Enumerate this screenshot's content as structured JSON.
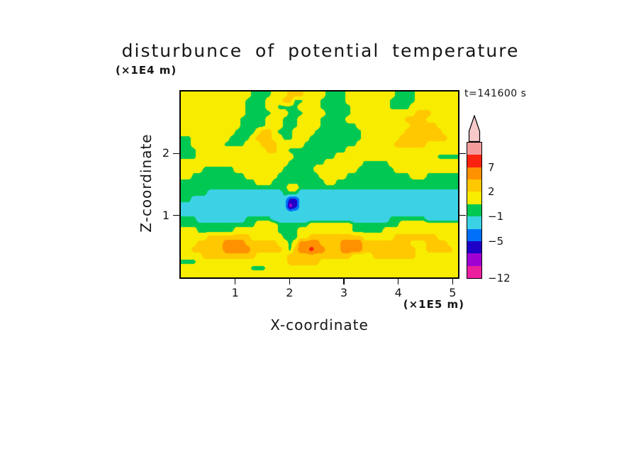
{
  "title": "disturbunce of potential temperature",
  "time_label": "t=141600 s",
  "axes": {
    "x": {
      "label": "X-coordinate",
      "unit": "(×1E5 m)",
      "ticks": [
        1,
        2,
        3,
        4,
        5
      ],
      "range": [
        0,
        5.1
      ]
    },
    "z": {
      "label": "Z-coordinate",
      "unit": "(×1E4 m)",
      "ticks": [
        1,
        2
      ],
      "range": [
        0,
        3
      ]
    }
  },
  "colorbar": {
    "arrow_color": "#F7C9C9",
    "blocks": [
      "#F59B9B",
      "#FA230F",
      "#FF9100",
      "#FFC800",
      "#F8EC00",
      "#00C853",
      "#3CD2E6",
      "#0070FA",
      "#1E00C8",
      "#A000D2",
      "#EC1F9E"
    ],
    "labels": [
      {
        "text": "7",
        "boundary": 2
      },
      {
        "text": "2",
        "boundary": 4
      },
      {
        "text": "−1",
        "boundary": 6
      },
      {
        "text": "−5",
        "boundary": 8
      },
      {
        "text": "−12",
        "boundary": 11
      }
    ]
  },
  "chart_data": {
    "type": "heatmap",
    "subtype": "filled-contour",
    "title": "disturbunce of potential temperature",
    "xlabel": "X-coordinate (×1E5 m)",
    "ylabel": "Z-coordinate (×1E4 m)",
    "annotation": "t=141600 s",
    "x_range": [
      0,
      5.1
    ],
    "z_range": [
      0,
      3
    ],
    "x_ticks": [
      1,
      2,
      3,
      4,
      5
    ],
    "z_ticks": [
      1,
      2
    ],
    "contour_boundaries": [
      -12,
      -9,
      -7,
      -5,
      -3,
      -1,
      0,
      2,
      4,
      7,
      10,
      13
    ],
    "labeled_boundaries": [
      7,
      2,
      -1,
      -5,
      -12
    ],
    "legend_position": "right",
    "grid_on": false,
    "levels": [
      {
        "min": -12,
        "color": "#EC1F9E"
      },
      {
        "min": -9,
        "color": "#A000D2"
      },
      {
        "min": -7,
        "color": "#1E00C8"
      },
      {
        "min": -5,
        "color": "#0070FA"
      },
      {
        "min": -3,
        "color": "#3CD2E6"
      },
      {
        "min": -1,
        "color": "#00C853"
      },
      {
        "min": 0,
        "color": "#F8EC00"
      },
      {
        "min": 2,
        "color": "#FFC800"
      },
      {
        "min": 4,
        "color": "#FF9100"
      },
      {
        "min": 7,
        "color": "#FA230F"
      },
      {
        "min": 10,
        "color": "#F59B9B"
      },
      {
        "min": 13,
        "color": "#F7C9C9"
      }
    ],
    "value_map": {
      "y": 1.0,
      "Y": 3.0,
      "o": 5.5,
      "r": 8.5,
      "g": -0.5,
      "c": -2.0,
      "b": -4.0,
      "n": -6.0,
      "p": -8.0
    },
    "grid_note": "rows top(z=3) to bottom(z=0), 52 columns spanning x=0..5.1; characters map to field values via value_map",
    "grid": [
      "yyyyyyyyyyyyyggggyyyYYYyyyyggggyyyyyyyyyggggyyyyyyyy",
      "yyyyyyyyyyyyggggyyyYYggyyygggggyyyyyyyygggggyyyyyyyy",
      "yyyyyyyyyyyyggggyyggggyyyyggggggyyyyyyyggggyyyyyyyyy",
      "yyyyyyyyyyyygggggyyygggyyyygggggyyyyyyyyyyyyYYYyyyyy",
      "yyyyyyyyyyygggggyyygggyyyygggggyyyyyyyyyyyYYYYyyyyyy",
      "yyyyyyyyyyygggggyyygggyyyygggggggyyyyyyyyyyYYYYYyyyy",
      "yyyyyyyyyyggggyYYygggyyyygggggggggyyyyyyyyYYYYYYYyyy",
      "ggyyyyyyyggggyYYYyyggyyyggggggggggyyyyyyyYYYYYYYYYyy",
      "ggyyyyyyggggyyyYYYyyyyyggggggggggyyyyyyyYYYYYYyyyyyy",
      "gggyyyyyyyyyyyyyYYyygggggggggggyyyyyyyyyyyyyyyyyyyyy",
      "gggyyyyyyyyyyyyyyyyyyggggggggyyyyyyyyyyyyyyyyyyygggg",
      "yyyyyyyyyyyyyyyyyyyygggggggyyyyyyygggggyyyyyyyyyyyyy",
      "yyyyggggggyyyyyyyyyggggggyyyyyyyygggggggyyyyyyyyyyyy",
      "yyggggggggggGyyyyyggggggggyyyyyggggggggggggyyygggggg",
      "ggggggggggggggyyyggggggggggyyggggggggggggggggggggggg",
      "ggggggggggggggggggggyygggggggggggggggggggggggggggggg",
      "gggggccccccccccccccgggcccccccccccccccccccccccccccccc",
      "ggccccccccccccccccccnncccccccccccccccccccccccccccccc",
      "ccccccccccccccccccccpncccccccccccccccccccccccccccccc",
      "cccccccccccccccccccccccccccccccccccccccccccccccccccc",
      "gggcccccccccgggggccccccccccccccccccccccgggggggcccccc",
      "ggggggggggggggyyyyggggggyyyyyyyygggggggggyyyyyyyyyyy",
      "yyygggggggyyyyyyyyggggyyyyyyyyyyggggggyyyyyyyyyyyyyy",
      "yyyyyYYYYYYYYyyyyyygggyyYYYYYYYYYYyyyyyyYYYYYYYYyyyy",
      "yyyYYYYYooooYYYYYYyygyooooYYYYooooYYYYYYYYYyyyYYYYyy",
      "yyYYYYYYoooooYYYYYYygYoorooYYYooooYYYYYYYYYYyyYYYYYy",
      "yyyyYYYYYYYYYYyyyyyyYYYYYYYYYYYYyyyyYYYYYYYYyyyyyyyy",
      "gggyyyyyyyyyyyyyyyyyYYYYYYyyyyyyyyyyyyyyyyyyyyyyyyyy",
      "yyyyyyyyyyyyygggyyyyyyyyyyyyyyyyyyyyyyyyyyyyyyyyyyyy",
      "yyyyyyyyyyyyyyyyyyyyyyyyyyyyyyyyyyyyyyyyyyyyyyyyyyyy"
    ]
  }
}
